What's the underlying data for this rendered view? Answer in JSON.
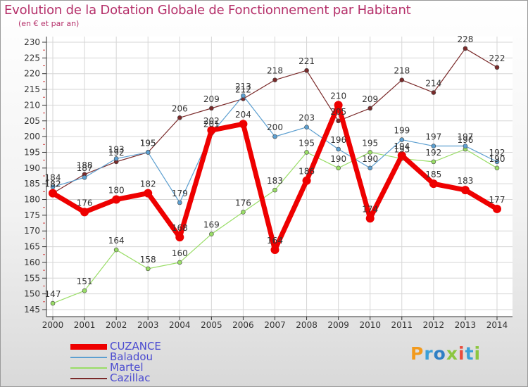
{
  "header": {
    "title": "Evolution de la Dotation Globale de Fonctionnement par Habitant",
    "subtitle": "(en € et par an)"
  },
  "logo": {
    "text": "Proxiti",
    "colors": [
      "#f29a1d",
      "#3aa0d8",
      "#2f7fc4",
      "#8cc63f",
      "#e84c3d",
      "#3aa0d8",
      "#8cc63f"
    ]
  },
  "chart_data": {
    "type": "line",
    "x": [
      2000,
      2001,
      2002,
      2003,
      2004,
      2005,
      2006,
      2007,
      2008,
      2009,
      2010,
      2011,
      2012,
      2013,
      2014
    ],
    "ylim": [
      145,
      230
    ],
    "yticks": [
      145,
      150,
      155,
      160,
      165,
      170,
      175,
      180,
      185,
      190,
      195,
      200,
      205,
      210,
      215,
      220,
      225,
      230
    ],
    "grid": true,
    "legend_position": "bottom-left",
    "series": [
      {
        "name": "Cazillac",
        "color": "#7a2a2a",
        "values": [
          182,
          188,
          192,
          195,
          206,
          209,
          212,
          218,
          221,
          205,
          209,
          218,
          214,
          228,
          222
        ]
      },
      {
        "name": "Martel",
        "color": "#99dd66",
        "values": [
          147,
          151,
          164,
          158,
          160,
          169,
          176,
          183,
          195,
          190,
          195,
          193,
          192,
          196,
          190
        ]
      },
      {
        "name": "Baladou",
        "color": "#5c9fd0",
        "values": [
          184,
          187,
          193,
          195,
          179,
          201,
          213,
          200,
          203,
          196,
          190,
          199,
          197,
          197,
          192
        ]
      },
      {
        "name": "CUZANCE",
        "color": "#ee0000",
        "values": [
          182,
          176,
          180,
          182,
          168,
          202,
          204,
          164,
          186,
          210,
          174,
          194,
          185,
          183,
          177
        ]
      }
    ]
  }
}
